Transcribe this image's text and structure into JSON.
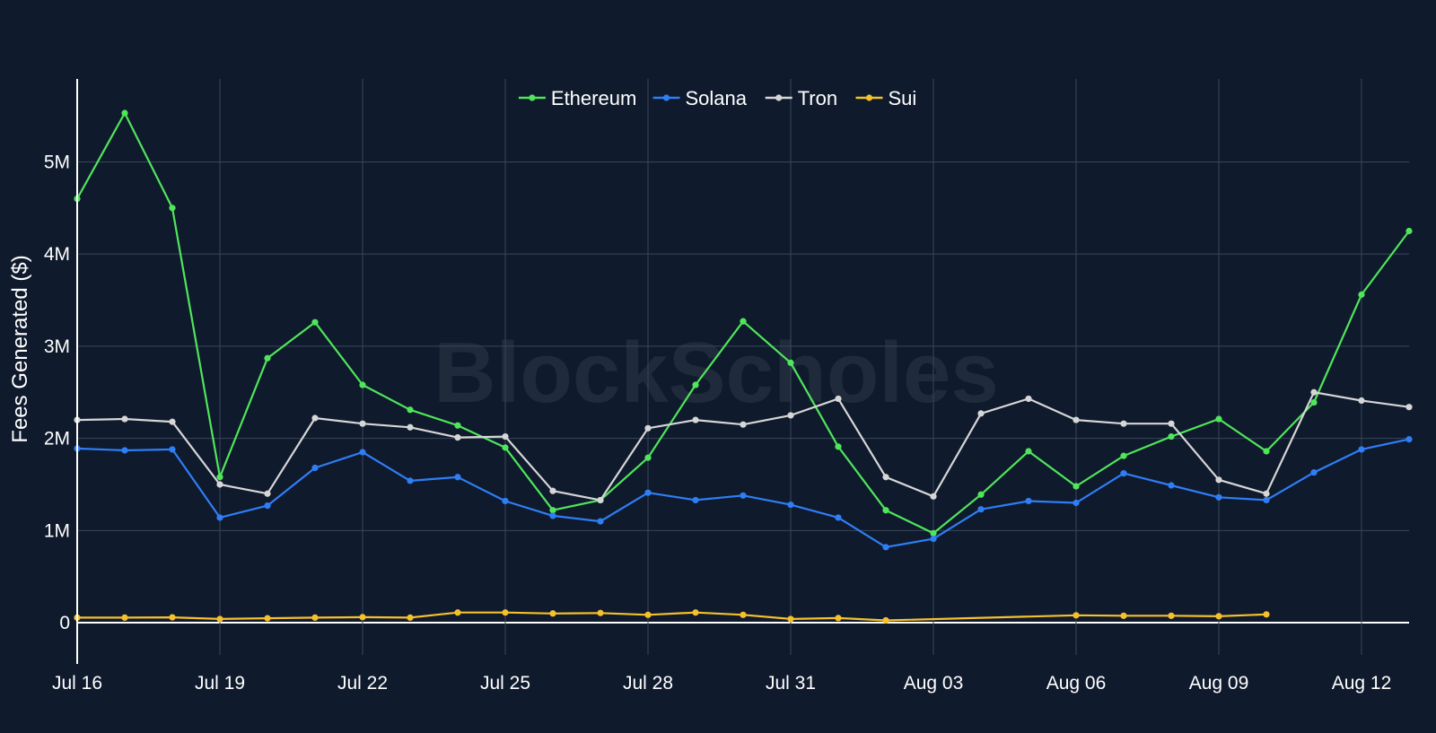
{
  "chart_data": {
    "type": "line",
    "title": "",
    "xlabel": "",
    "ylabel": "Fees Generated ($)",
    "watermark": "BlockScholes",
    "x": [
      "2024-07-16",
      "2024-07-17",
      "2024-07-18",
      "2024-07-19",
      "2024-07-20",
      "2024-07-21",
      "2024-07-22",
      "2024-07-23",
      "2024-07-24",
      "2024-07-25",
      "2024-07-26",
      "2024-07-27",
      "2024-07-28",
      "2024-07-29",
      "2024-07-30",
      "2024-07-31",
      "2024-08-01",
      "2024-08-02",
      "2024-08-03",
      "2024-08-04",
      "2024-08-05",
      "2024-08-06",
      "2024-08-07",
      "2024-08-08",
      "2024-08-09",
      "2024-08-10",
      "2024-08-11",
      "2024-08-12",
      "2024-08-13"
    ],
    "x_range": [
      "2024-07-16",
      "2024-08-13"
    ],
    "x_ticks": [
      "Jul 16",
      "Jul 19",
      "Jul 22",
      "Jul 25",
      "Jul 28",
      "Jul 31",
      "Aug 03",
      "Aug 06",
      "Aug 09",
      "Aug 12"
    ],
    "y_ticks": [
      "0",
      "1M",
      "2M",
      "3M",
      "4M",
      "5M"
    ],
    "ylim": [
      -350000,
      5900000
    ],
    "grid": true,
    "legend_position": "top-center",
    "series": [
      {
        "name": "Ethereum",
        "color": "#4fe65a",
        "values": [
          4600000,
          5530000,
          4500000,
          1580000,
          2870000,
          3260000,
          2580000,
          2310000,
          2140000,
          1900000,
          1220000,
          1330000,
          1790000,
          2580000,
          3270000,
          2820000,
          1910000,
          1220000,
          970000,
          1390000,
          1860000,
          1480000,
          1810000,
          2020000,
          2210000,
          1860000,
          2390000,
          3560000,
          4250000
        ]
      },
      {
        "name": "Solana",
        "color": "#2f7ef5",
        "values": [
          1890000,
          1870000,
          1880000,
          1140000,
          1270000,
          1680000,
          1850000,
          1540000,
          1580000,
          1320000,
          1160000,
          1100000,
          1410000,
          1330000,
          1380000,
          1280000,
          1140000,
          820000,
          910000,
          1230000,
          1320000,
          1300000,
          1620000,
          1490000,
          1360000,
          1330000,
          1630000,
          1880000,
          1990000
        ]
      },
      {
        "name": "Tron",
        "color": "#d6d6d6",
        "values": [
          2200000,
          2210000,
          2180000,
          1500000,
          1400000,
          2220000,
          2160000,
          2120000,
          2010000,
          2020000,
          1430000,
          1330000,
          2110000,
          2200000,
          2150000,
          2250000,
          2430000,
          1580000,
          1370000,
          2270000,
          2430000,
          2200000,
          2160000,
          2160000,
          1550000,
          1400000,
          2500000,
          2410000,
          2340000
        ]
      },
      {
        "name": "Sui",
        "color": "#f5c02c",
        "values": [
          55000,
          55000,
          58000,
          40000,
          48000,
          55000,
          60000,
          55000,
          110000,
          110000,
          100000,
          105000,
          85000,
          110000,
          85000,
          40000,
          50000,
          25000,
          null,
          null,
          null,
          80000,
          75000,
          75000,
          70000,
          90000,
          null,
          null,
          null
        ]
      }
    ]
  }
}
